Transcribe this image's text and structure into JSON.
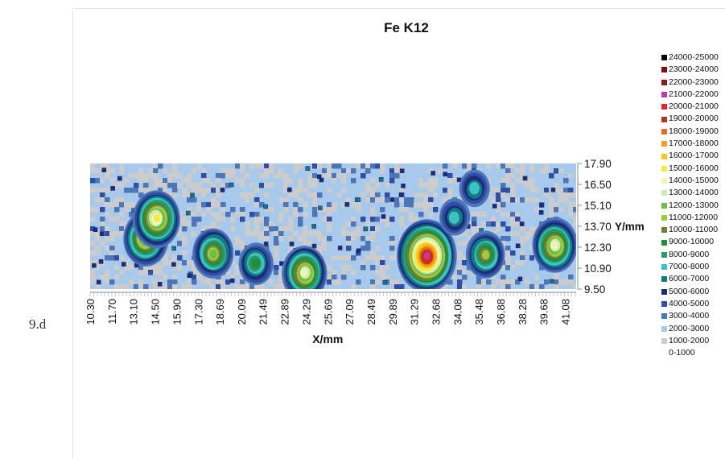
{
  "figure_label": "9.d",
  "chart_data": {
    "type": "heatmap",
    "title": "Fe K12",
    "xlabel": "X/mm",
    "ylabel": "Y/mm",
    "x_ticks": [
      "10.30",
      "11.70",
      "13.10",
      "14.50",
      "15.90",
      "17.30",
      "18.69",
      "20.09",
      "21.49",
      "22.89",
      "24.29",
      "25.69",
      "27.09",
      "28.49",
      "29.89",
      "31.29",
      "32.68",
      "34.08",
      "35.48",
      "36.88",
      "38.28",
      "39.68",
      "41.08"
    ],
    "y_ticks": [
      "17.90",
      "16.50",
      "15.10",
      "13.70",
      "12.30",
      "10.90",
      "9.50"
    ],
    "xlim": [
      10.3,
      41.78
    ],
    "ylim": [
      9.5,
      17.9
    ],
    "grid": false,
    "legend_position": "right",
    "legend": [
      {
        "label": "24000-25000",
        "color": "#000000"
      },
      {
        "label": "23000-24000",
        "color": "#7b1010"
      },
      {
        "label": "22000-23000",
        "color": "#8b1a1a"
      },
      {
        "label": "21000-22000",
        "color": "#c23ca8"
      },
      {
        "label": "20000-21000",
        "color": "#e8231e"
      },
      {
        "label": "19000-20000",
        "color": "#a83a20"
      },
      {
        "label": "18000-19000",
        "color": "#ee6a22"
      },
      {
        "label": "17000-18000",
        "color": "#f6a020"
      },
      {
        "label": "16000-17000",
        "color": "#f7c814"
      },
      {
        "label": "15000-16000",
        "color": "#f3ec3a"
      },
      {
        "label": "14000-15000",
        "color": "#f4f3b4"
      },
      {
        "label": "13000-14000",
        "color": "#cfe9b8"
      },
      {
        "label": "12000-13000",
        "color": "#6cc04a"
      },
      {
        "label": "11000-12000",
        "color": "#9acd3c"
      },
      {
        "label": "10000-11000",
        "color": "#7a7a32"
      },
      {
        "label": "9000-10000",
        "color": "#1f8f3a"
      },
      {
        "label": "8000-9000",
        "color": "#2a9a6a"
      },
      {
        "label": "7000-8000",
        "color": "#3cc2c4"
      },
      {
        "label": "6000-7000",
        "color": "#0f7c82"
      },
      {
        "label": "5000-6000",
        "color": "#1d2c78"
      },
      {
        "label": "4000-5000",
        "color": "#2f4ea6"
      },
      {
        "label": "3000-4000",
        "color": "#4d76b8"
      },
      {
        "label": "2000-3000",
        "color": "#a6c9ec"
      },
      {
        "label": "1000-2000",
        "color": "#cccccc"
      },
      {
        "label": "0-1000",
        "color": ""
      }
    ],
    "hotspots": [
      {
        "x": 13.9,
        "y": 12.9,
        "level": 14
      },
      {
        "x": 14.6,
        "y": 14.2,
        "level": 15
      },
      {
        "x": 18.3,
        "y": 11.9,
        "level": 12
      },
      {
        "x": 21.0,
        "y": 11.2,
        "level": 9
      },
      {
        "x": 24.2,
        "y": 10.6,
        "level": 14
      },
      {
        "x": 32.1,
        "y": 11.7,
        "level": 21
      },
      {
        "x": 33.9,
        "y": 14.3,
        "level": 7
      },
      {
        "x": 35.2,
        "y": 16.2,
        "level": 7
      },
      {
        "x": 35.9,
        "y": 11.8,
        "level": 11
      },
      {
        "x": 40.4,
        "y": 12.4,
        "level": 14
      }
    ]
  }
}
